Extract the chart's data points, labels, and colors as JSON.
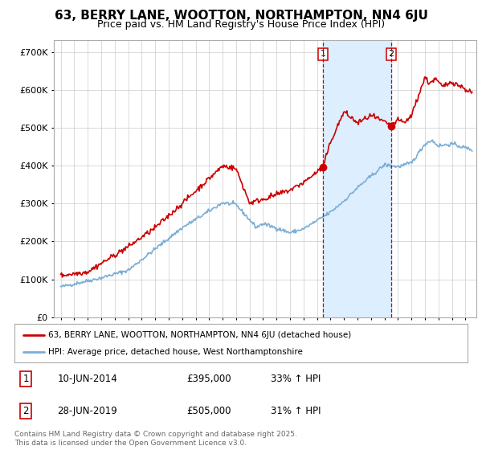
{
  "title": "63, BERRY LANE, WOOTTON, NORTHAMPTON, NN4 6JU",
  "subtitle": "Price paid vs. HM Land Registry's House Price Index (HPI)",
  "legend_label_red": "63, BERRY LANE, WOOTTON, NORTHAMPTON, NN4 6JU (detached house)",
  "legend_label_blue": "HPI: Average price, detached house, West Northamptonshire",
  "transaction1_date": "10-JUN-2014",
  "transaction1_price": "£395,000",
  "transaction1_hpi": "33% ↑ HPI",
  "transaction1_year": 2014.44,
  "transaction1_value": 395000,
  "transaction2_date": "28-JUN-2019",
  "transaction2_price": "£505,000",
  "transaction2_hpi": "31% ↑ HPI",
  "transaction2_year": 2019.49,
  "transaction2_value": 505000,
  "footer": "Contains HM Land Registry data © Crown copyright and database right 2025.\nThis data is licensed under the Open Government Licence v3.0.",
  "ylim": [
    0,
    730000
  ],
  "xlim_start": 1994.5,
  "xlim_end": 2025.8,
  "background_color": "#ffffff",
  "plot_bg_color": "#ffffff",
  "grid_color": "#cccccc",
  "red_color": "#cc0000",
  "blue_color": "#7aaed6",
  "shade_color": "#ddeeff",
  "vline_color": "#cc0000",
  "title_fontsize": 11,
  "subtitle_fontsize": 9
}
